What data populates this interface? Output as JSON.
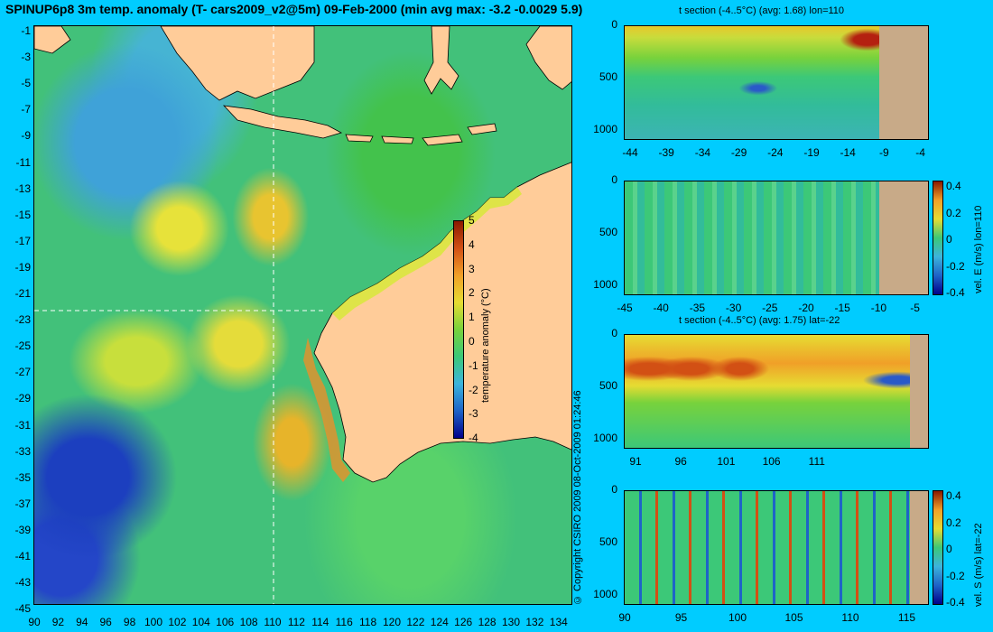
{
  "title": "SPINUP6p8 3m temp. anomaly (T- cars2009_v2@5m) 09-Feb-2000 (min avg max: -3.2 -0.0029 5.9)",
  "map": {
    "y_ticks": [
      "-1",
      "-3",
      "-5",
      "-7",
      "-9",
      "-11",
      "-13",
      "-15",
      "-17",
      "-19",
      "-21",
      "-23",
      "-25",
      "-27",
      "-29",
      "-31",
      "-33",
      "-35",
      "-37",
      "-39",
      "-41",
      "-43",
      "-45"
    ],
    "x_ticks": [
      "90",
      "92",
      "94",
      "96",
      "98",
      "100",
      "102",
      "104",
      "106",
      "108",
      "110",
      "112",
      "114",
      "116",
      "118",
      "120",
      "122",
      "124",
      "126",
      "128",
      "130",
      "132",
      "134"
    ],
    "section_lon": 110,
    "section_lat": -22,
    "colorbar": {
      "label": "temperature anomaly (°C)",
      "ticks": [
        "5",
        "4",
        "3",
        "2",
        "1",
        "0",
        "-1",
        "-2",
        "-3",
        "-4"
      ]
    },
    "copyright": "© Copyright CSIRO 2009   08-Oct-2009 01:24:46"
  },
  "panels": [
    {
      "title": "t section (-4..5°C) (avg: 1.68) lon=110",
      "y_ticks": [
        "0",
        "500",
        "1000"
      ],
      "x_ticks": [
        "-44",
        "-39",
        "-34",
        "-29",
        "-24",
        "-19",
        "-14",
        "-9",
        "-4"
      ],
      "colorbar": null
    },
    {
      "title": "",
      "y_ticks": [
        "0",
        "500",
        "1000"
      ],
      "x_ticks": [
        "-45",
        "-40",
        "-35",
        "-30",
        "-25",
        "-20",
        "-15",
        "-10",
        "-5"
      ],
      "colorbar": {
        "label": "vel. E (m/s) lon=110",
        "ticks": [
          "0.4",
          "0.2",
          "0",
          "-0.2",
          "-0.4"
        ]
      }
    },
    {
      "title": "t section (-4..5°C) (avg: 1.75) lat=-22",
      "y_ticks": [
        "0",
        "500",
        "1000"
      ],
      "x_ticks": [
        "91",
        "96",
        "101",
        "106",
        "111"
      ],
      "colorbar": null
    },
    {
      "title": "",
      "y_ticks": [
        "0",
        "500",
        "1000"
      ],
      "x_ticks": [
        "90",
        "95",
        "100",
        "105",
        "110",
        "115"
      ],
      "colorbar": {
        "label": "vel. S (m/s) lat=-22",
        "ticks": [
          "0.4",
          "0.2",
          "0",
          "-0.2",
          "-0.4"
        ]
      }
    }
  ],
  "colors": {
    "background": "#00ccff",
    "land": "#ffcc99",
    "section_land": "#c8aa88",
    "anomaly_scale": [
      "#00008b",
      "#1e64c8",
      "#3cb4dc",
      "#3cc878",
      "#78d23c",
      "#e6dc32",
      "#f0a028",
      "#d25014",
      "#8b1a00"
    ]
  }
}
